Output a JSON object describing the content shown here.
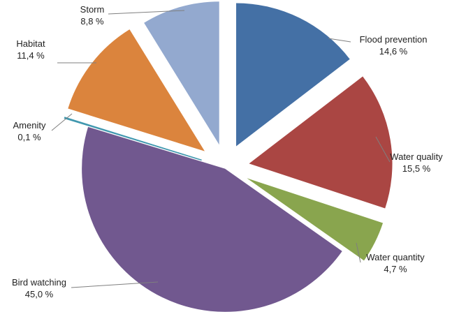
{
  "chart_data": {
    "type": "pie",
    "style": "exploded",
    "start_direction": "top",
    "direction": "clockwise",
    "legend": "none",
    "slices": [
      {
        "label": "Flood prevention",
        "value_label": "14,6 %",
        "value": 14.6,
        "color": "#4470A5"
      },
      {
        "label": "Water quality",
        "value_label": "15,5 %",
        "value": 15.5,
        "color": "#AA4643"
      },
      {
        "label": "Water quantity",
        "value_label": "4,7 %",
        "value": 4.7,
        "color": "#89A54E"
      },
      {
        "label": "Bird watching",
        "value_label": "45,0 %",
        "value": 45.0,
        "color": "#71588F"
      },
      {
        "label": "Amenity",
        "value_label": "0,1 %",
        "value": 0.1,
        "color": "#4198AF"
      },
      {
        "label": "Habitat",
        "value_label": "11,4 %",
        "value": 11.4,
        "color": "#DB843D"
      },
      {
        "label": "Storm",
        "value_label": "8,8 %",
        "value": 8.8,
        "color": "#93A9CF"
      }
    ]
  }
}
